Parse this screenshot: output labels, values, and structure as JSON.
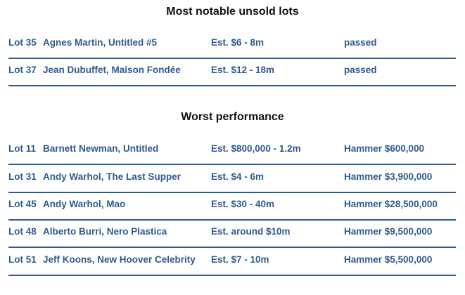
{
  "unsold": {
    "title": "Most notable unsold lots",
    "rows": [
      {
        "lot": "Lot 35",
        "work": "Agnes Martin, Untitled #5",
        "estimate": "Est. $6 - 8m",
        "result": "passed"
      },
      {
        "lot": "Lot 37",
        "work": "Jean Dubuffet, Maison Fondée",
        "estimate": "Est. $12 - 18m",
        "result": "passed"
      }
    ]
  },
  "worst": {
    "title": "Worst performance",
    "rows": [
      {
        "lot": "Lot 11",
        "work": "Barnett Newman, Untitled",
        "estimate": "Est. $800,000 - 1.2m",
        "result": "Hammer $600,000"
      },
      {
        "lot": "Lot 31",
        "work": "Andy Warhol, The Last Supper",
        "estimate": "Est. $4 - 6m",
        "result": "Hammer $3,900,000"
      },
      {
        "lot": "Lot 45",
        "work": "Andy Warhol, Mao",
        "estimate": "Est. $30 - 40m",
        "result": "Hammer $28,500,000"
      },
      {
        "lot": "Lot 48",
        "work": "Alberto Burri, Nero Plastica",
        "estimate": "Est. around $10m",
        "result": "Hammer $9,500,000"
      },
      {
        "lot": "Lot 51",
        "work": "Jeff Koons, New Hoover Celebrity",
        "estimate": "Est. $7 - 10m",
        "result": "Hammer $5,500,000"
      }
    ]
  }
}
